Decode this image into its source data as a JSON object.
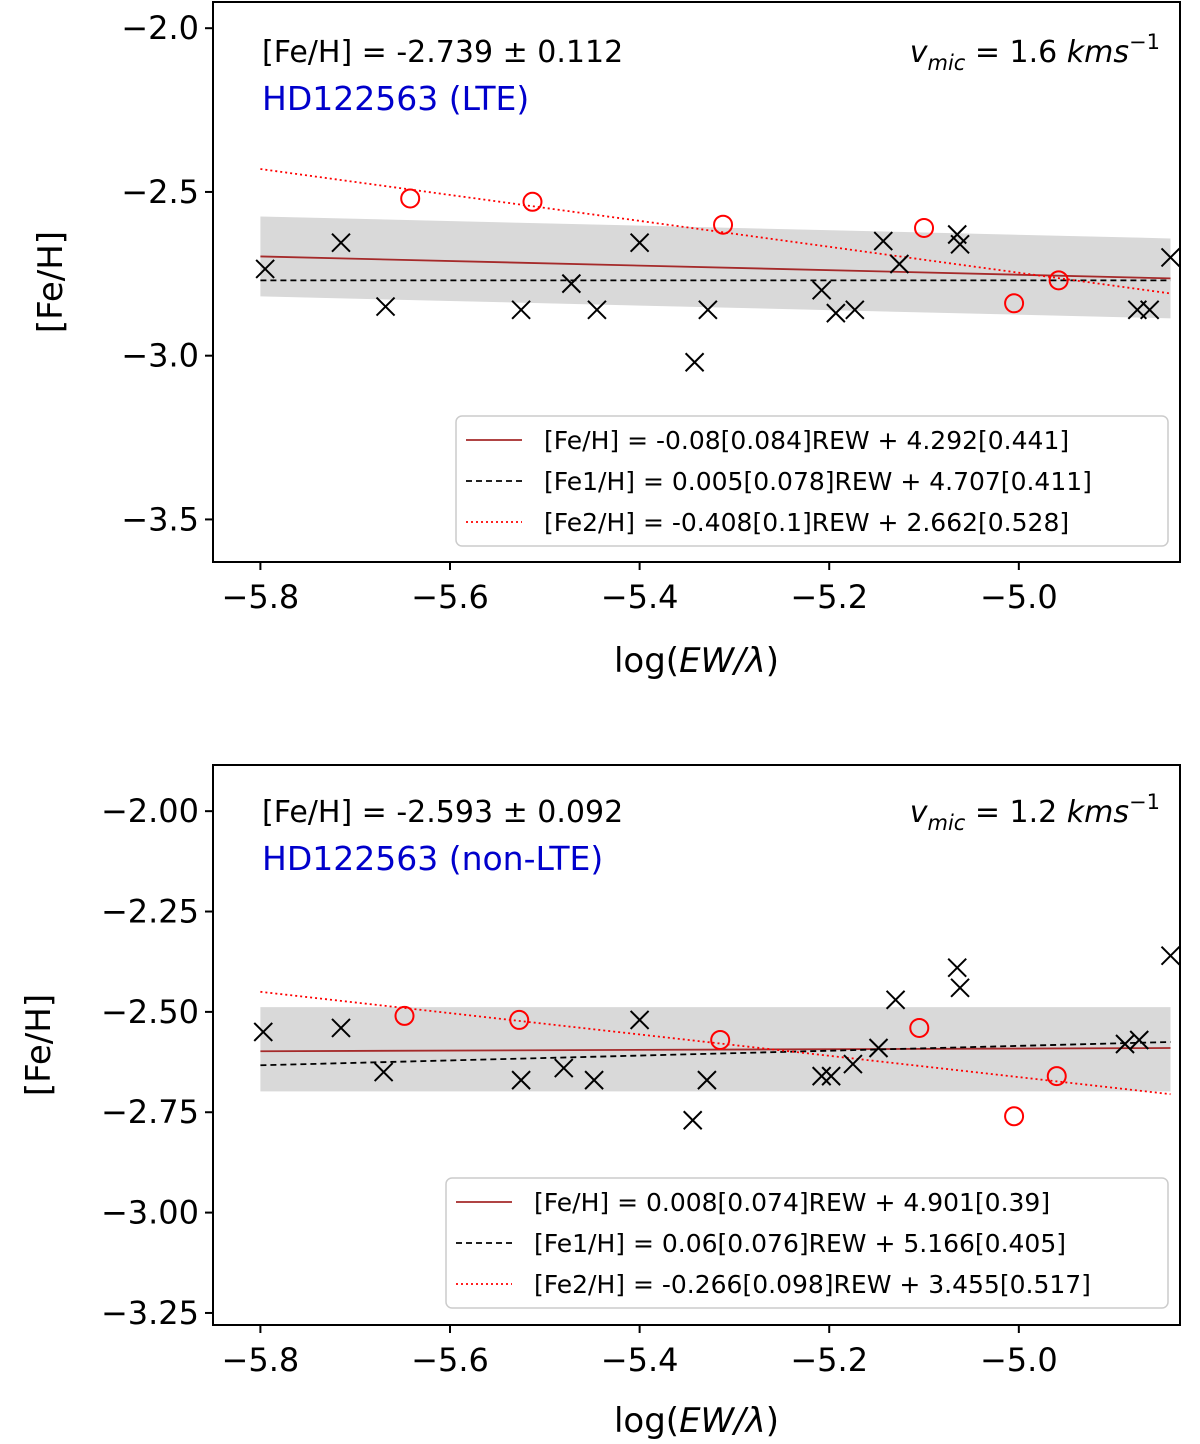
{
  "chart_data": [
    {
      "type": "scatter",
      "title": "",
      "xlabel": "log(EW/λ)",
      "xlabel_parts": {
        "prefix": "log(",
        "italic": "EW/λ",
        "suffix": ")"
      },
      "ylabel": "[Fe/H]",
      "xlim": [
        -5.85,
        -4.83
      ],
      "ylim": [
        -3.63,
        -1.92
      ],
      "xticks": [
        -5.8,
        -5.6,
        -5.4,
        -5.2,
        -5.0
      ],
      "xtick_labels": [
        "−5.8",
        "−5.6",
        "−5.4",
        "−5.2",
        "−5.0"
      ],
      "yticks": [
        -2.0,
        -2.5,
        -3.0,
        -3.5
      ],
      "ytick_labels": [
        "−2.0",
        "−2.5",
        "−3.0",
        "−3.5"
      ],
      "feh_text": "[Fe/H] = -2.739 ± 0.112",
      "star_text": "HD122563 (LTE)",
      "star_color": "#0000cc",
      "vmic": {
        "v": "v",
        "sub": "mic",
        "eq": " = 1.6 ",
        "unit": "kms",
        "exp": "−1"
      },
      "band": {
        "x": [
          -5.8,
          -4.84
        ],
        "center": [
          -2.697,
          -2.764
        ],
        "halfwidth": 0.122
      },
      "series": [
        {
          "name": "Fe1",
          "marker": "x",
          "color": "#000000",
          "x": [
            -5.795,
            -5.715,
            -5.668,
            -5.525,
            -5.472,
            -5.445,
            -5.4,
            -5.342,
            -5.328,
            -5.208,
            -5.193,
            -5.173,
            -5.143,
            -5.126,
            -5.065,
            -5.062,
            -4.875,
            -4.862,
            -4.84
          ],
          "y": [
            -2.735,
            -2.655,
            -2.85,
            -2.86,
            -2.78,
            -2.86,
            -2.655,
            -3.02,
            -2.86,
            -2.8,
            -2.87,
            -2.86,
            -2.65,
            -2.72,
            -2.63,
            -2.66,
            -2.86,
            -2.86,
            -2.7
          ]
        },
        {
          "name": "Fe2",
          "marker": "o",
          "color": "#ff0000",
          "x": [
            -5.642,
            -5.513,
            -5.312,
            -5.1,
            -5.005,
            -4.958
          ],
          "y": [
            -2.52,
            -2.53,
            -2.6,
            -2.61,
            -2.84,
            -2.77
          ]
        }
      ],
      "fits": [
        {
          "name": "Fe",
          "style": "solid",
          "color": "#a52a2a",
          "x": [
            -5.8,
            -4.84
          ],
          "y": [
            -2.697,
            -2.764
          ],
          "label": "[Fe/H] = -0.08[0.084]REW + 4.292[0.441]"
        },
        {
          "name": "Fe1",
          "style": "dashed",
          "color": "#000000",
          "x": [
            -5.8,
            -4.84
          ],
          "y": [
            -2.77,
            -2.77
          ],
          "label": "[Fe1/H] = 0.005[0.078]REW + 4.707[0.411]"
        },
        {
          "name": "Fe2",
          "style": "dotted",
          "color": "#ff0000",
          "x": [
            -5.8,
            -4.84
          ],
          "y": [
            -2.43,
            -2.81
          ],
          "label": "[Fe2/H] = -0.408[0.1]REW + 2.662[0.528]"
        }
      ],
      "legend_loc": "lower right"
    },
    {
      "type": "scatter",
      "title": "",
      "xlabel": "log(EW/λ)",
      "xlabel_parts": {
        "prefix": "log(",
        "italic": "EW/λ",
        "suffix": ")"
      },
      "ylabel": "[Fe/H]",
      "xlim": [
        -5.85,
        -4.83
      ],
      "ylim": [
        -3.28,
        -1.885
      ],
      "xticks": [
        -5.8,
        -5.6,
        -5.4,
        -5.2,
        -5.0
      ],
      "xtick_labels": [
        "−5.8",
        "−5.6",
        "−5.4",
        "−5.2",
        "−5.0"
      ],
      "yticks": [
        -2.0,
        -2.25,
        -2.5,
        -2.75,
        -3.0,
        -3.25
      ],
      "ytick_labels": [
        "−2.00",
        "−2.25",
        "−2.50",
        "−2.75",
        "−3.00",
        "−3.25"
      ],
      "feh_text": "[Fe/H] = -2.593 ± 0.092",
      "star_text": "HD122563 (non-LTE)",
      "star_color": "#0000cc",
      "vmic": {
        "v": "v",
        "sub": "mic",
        "eq": " = 1.2 ",
        "unit": "kms",
        "exp": "−1"
      },
      "band": {
        "x": [
          -5.8,
          -4.84
        ],
        "center": [
          -2.593,
          -2.593
        ],
        "halfwidth": 0.105
      },
      "series": [
        {
          "name": "Fe1",
          "marker": "x",
          "color": "#000000",
          "x": [
            -5.797,
            -5.715,
            -5.67,
            -5.525,
            -5.48,
            -5.448,
            -5.4,
            -5.344,
            -5.329,
            -5.208,
            -5.198,
            -5.175,
            -5.148,
            -5.13,
            -5.065,
            -5.062,
            -4.888,
            -4.873,
            -4.84
          ],
          "y": [
            -2.55,
            -2.54,
            -2.65,
            -2.67,
            -2.64,
            -2.67,
            -2.52,
            -2.77,
            -2.67,
            -2.66,
            -2.66,
            -2.63,
            -2.59,
            -2.47,
            -2.39,
            -2.44,
            -2.58,
            -2.57,
            -2.36
          ]
        },
        {
          "name": "Fe2",
          "marker": "o",
          "color": "#ff0000",
          "x": [
            -5.648,
            -5.527,
            -5.315,
            -5.105,
            -5.005,
            -4.96
          ],
          "y": [
            -2.51,
            -2.52,
            -2.57,
            -2.54,
            -2.76,
            -2.66
          ]
        }
      ],
      "fits": [
        {
          "name": "Fe",
          "style": "solid",
          "color": "#a52a2a",
          "x": [
            -5.8,
            -4.84
          ],
          "y": [
            -2.598,
            -2.59
          ],
          "label": "[Fe/H] = 0.008[0.074]REW + 4.901[0.39]"
        },
        {
          "name": "Fe1",
          "style": "dashed",
          "color": "#000000",
          "x": [
            -5.8,
            -4.84
          ],
          "y": [
            -2.633,
            -2.575
          ],
          "label": "[Fe1/H] = 0.06[0.076]REW + 5.166[0.405]"
        },
        {
          "name": "Fe2",
          "style": "dotted",
          "color": "#ff0000",
          "x": [
            -5.8,
            -4.84
          ],
          "y": [
            -2.45,
            -2.705
          ],
          "label": "[Fe2/H] = -0.266[0.098]REW + 3.455[0.517]"
        }
      ],
      "legend_loc": "lower right"
    }
  ]
}
